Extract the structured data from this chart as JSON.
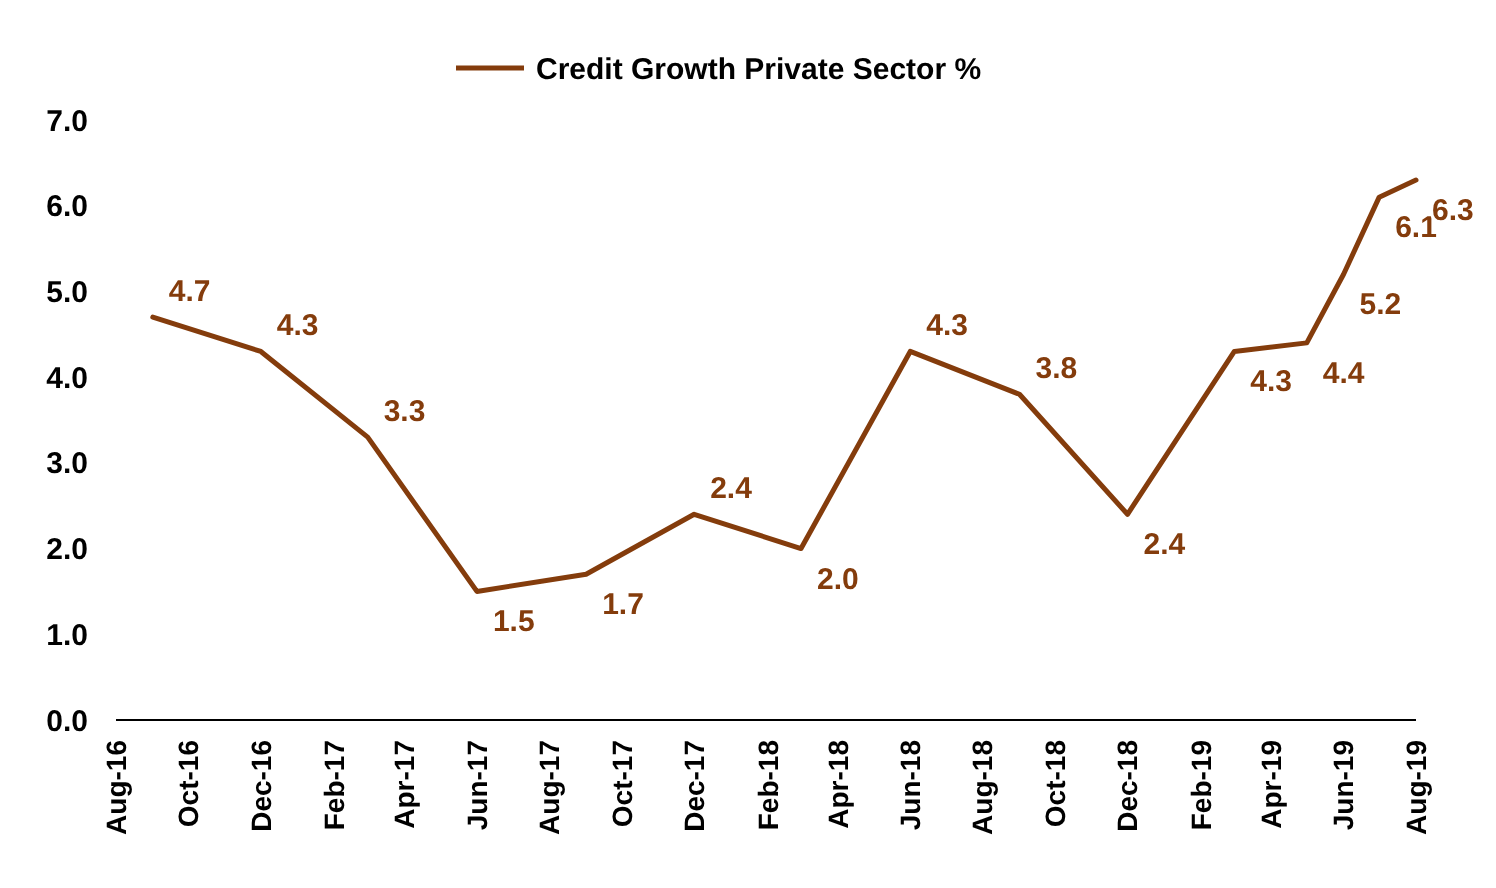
{
  "chart_data": {
    "type": "line",
    "x": [
      "2016-09",
      "2016-12",
      "2017-03",
      "2017-06",
      "2017-09",
      "2017-12",
      "2018-03",
      "2018-06",
      "2018-09",
      "2018-12",
      "2019-03",
      "2019-05",
      "2019-06",
      "2019-07",
      "2019-08"
    ],
    "series": [
      {
        "name": "Credit Growth Private Sector %",
        "color": "#843c0c",
        "values": [
          4.7,
          4.3,
          3.3,
          1.5,
          1.7,
          2.4,
          2.0,
          4.3,
          3.8,
          2.4,
          4.3,
          4.4,
          5.2,
          6.1,
          6.3
        ]
      }
    ],
    "value_labels": [
      "4.7",
      "4.3",
      "3.3",
      "1.5",
      "1.7",
      "2.4",
      "2.0",
      "4.3",
      "3.8",
      "2.4",
      "4.3",
      "4.4",
      "5.2",
      "6.1",
      "6.3"
    ],
    "xlim": [
      "2016-08",
      "2019-08"
    ],
    "xticks": [
      {
        "value": "2016-08",
        "label": "Aug-16"
      },
      {
        "value": "2016-10",
        "label": "Oct-16"
      },
      {
        "value": "2016-12",
        "label": "Dec-16"
      },
      {
        "value": "2017-02",
        "label": "Feb-17"
      },
      {
        "value": "2017-04",
        "label": "Apr-17"
      },
      {
        "value": "2017-06",
        "label": "Jun-17"
      },
      {
        "value": "2017-08",
        "label": "Aug-17"
      },
      {
        "value": "2017-10",
        "label": "Oct-17"
      },
      {
        "value": "2017-12",
        "label": "Dec-17"
      },
      {
        "value": "2018-02",
        "label": "Feb-18"
      },
      {
        "value": "2018-04",
        "label": "Apr-18"
      },
      {
        "value": "2018-06",
        "label": "Jun-18"
      },
      {
        "value": "2018-08",
        "label": "Aug-18"
      },
      {
        "value": "2018-10",
        "label": "Oct-18"
      },
      {
        "value": "2018-12",
        "label": "Dec-18"
      },
      {
        "value": "2019-02",
        "label": "Feb-19"
      },
      {
        "value": "2019-04",
        "label": "Apr-19"
      },
      {
        "value": "2019-06",
        "label": "Jun-19"
      },
      {
        "value": "2019-08",
        "label": "Aug-19"
      }
    ],
    "ylim": [
      0,
      7
    ],
    "yticks": [
      {
        "value": 0,
        "label": "0.0"
      },
      {
        "value": 1,
        "label": "1.0"
      },
      {
        "value": 2,
        "label": "2.0"
      },
      {
        "value": 3,
        "label": "3.0"
      },
      {
        "value": 4,
        "label": "4.0"
      },
      {
        "value": 5,
        "label": "5.0"
      },
      {
        "value": 6,
        "label": "6.0"
      },
      {
        "value": 7,
        "label": "7.0"
      }
    ],
    "grid": false,
    "legend": "top",
    "marker": "none",
    "line_style": "solid"
  }
}
